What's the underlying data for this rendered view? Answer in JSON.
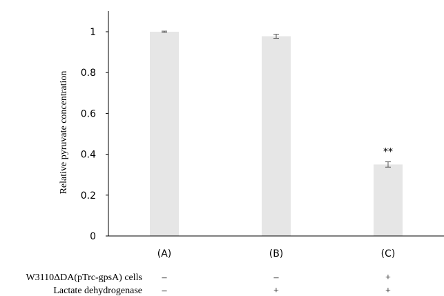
{
  "chart_data": {
    "type": "bar",
    "categories": [
      "(A)",
      "(B)",
      "(C)"
    ],
    "series": [
      {
        "values": [
          1.0,
          0.978,
          0.35
        ],
        "errors": [
          0.003,
          0.01,
          0.013
        ]
      }
    ],
    "annotations": [
      {
        "category": "(C)",
        "text": "**"
      }
    ],
    "ylabel": "Relative pyruvate concentration",
    "xlabel": "",
    "ylim": [
      0,
      1
    ],
    "yticks": [
      0,
      0.2,
      0.4,
      0.6,
      0.8,
      1
    ],
    "ytick_labels": [
      "0",
      "0.2",
      "0.4",
      "0.6",
      "0.8",
      "1"
    ],
    "grid": false,
    "legend": "none",
    "bar_color": "#e6e6e6",
    "axis_color": "#000000",
    "error_bar_color": "#555555",
    "condition_table": {
      "rows": [
        {
          "label": "W3110ΔDA(pTrc-gpsA) cells",
          "values": [
            "–",
            "–",
            "+"
          ]
        },
        {
          "label": "Lactate dehydrogenase",
          "values": [
            "–",
            "+",
            "+"
          ]
        }
      ]
    }
  }
}
